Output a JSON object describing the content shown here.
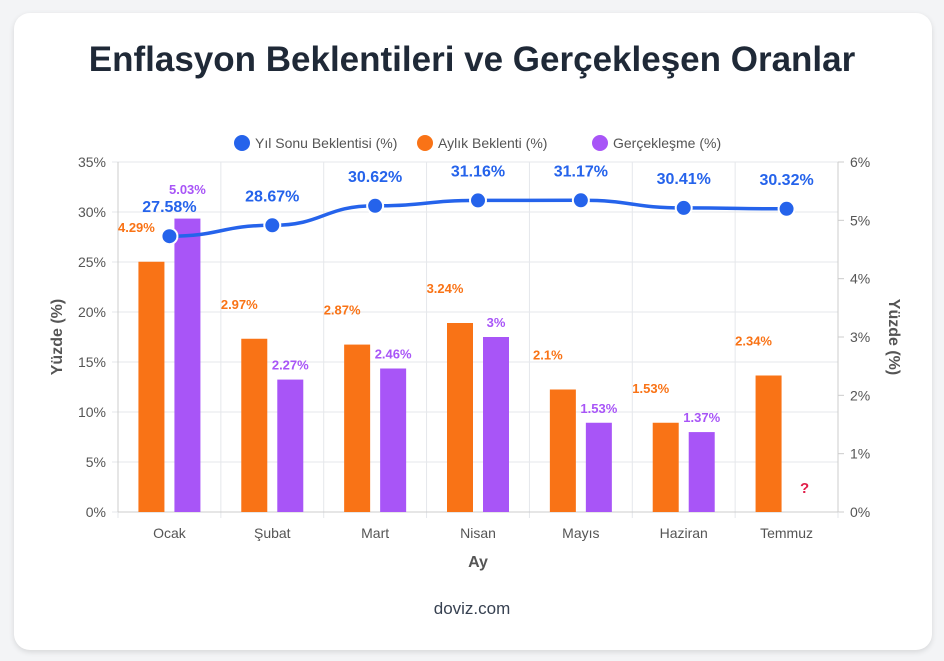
{
  "chart_data": {
    "type": "bar",
    "title": "Enflasyon Beklentileri ve Gerçekleşen Oranlar",
    "categories": [
      "Ocak",
      "Şubat",
      "Mart",
      "Nisan",
      "Mayıs",
      "Haziran",
      "Temmuz"
    ],
    "series": [
      {
        "name": "Yıl Sonu Beklentisi (%)",
        "type": "line",
        "axis": "left",
        "color": "#2563eb",
        "values": [
          27.58,
          28.67,
          30.62,
          31.16,
          31.17,
          30.41,
          30.32
        ],
        "labels": [
          "27.58%",
          "28.67%",
          "30.62%",
          "31.16%",
          "31.17%",
          "30.41%",
          "30.32%"
        ]
      },
      {
        "name": "Aylık Beklenti (%)",
        "type": "bar",
        "axis": "right",
        "color": "#f97316",
        "values": [
          4.29,
          2.97,
          2.87,
          3.24,
          2.1,
          1.53,
          2.34
        ],
        "labels": [
          "4.29%",
          "2.97%",
          "2.87%",
          "3.24%",
          "2.1%",
          "1.53%",
          "2.34%"
        ]
      },
      {
        "name": "Gerçekleşme (%)",
        "type": "bar",
        "axis": "right",
        "color": "#a855f7",
        "values": [
          5.03,
          2.27,
          2.46,
          3,
          1.53,
          1.37,
          null
        ],
        "labels": [
          "5.03%",
          "2.27%",
          "2.46%",
          "3%",
          "1.53%",
          "1.37%",
          "?"
        ]
      }
    ],
    "xlabel": "Ay",
    "ylabel": "Yüzde (%)",
    "y2label": "Yüzde (%)",
    "ylim": [
      0,
      35
    ],
    "y2lim": [
      0,
      6
    ],
    "yticks": [
      "0%",
      "5%",
      "10%",
      "15%",
      "20%",
      "25%",
      "30%",
      "35%"
    ],
    "y2ticks": [
      "0%",
      "1%",
      "2%",
      "3%",
      "4%",
      "5%",
      "6%"
    ],
    "legend": "top",
    "grid": true
  },
  "footer": "doviz.com"
}
